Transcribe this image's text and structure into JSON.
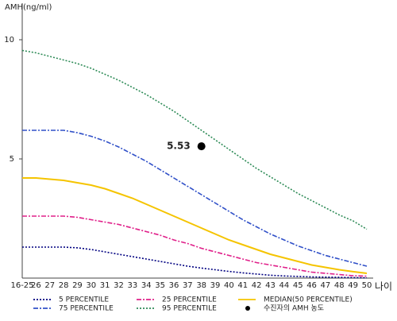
{
  "chart_data": {
    "type": "line",
    "y_label": "AMH(ng/ml)",
    "x_label": "나이",
    "categories": [
      "16-25",
      "26",
      "27",
      "28",
      "29",
      "30",
      "31",
      "32",
      "33",
      "34",
      "35",
      "36",
      "37",
      "38",
      "39",
      "40",
      "41",
      "42",
      "43",
      "44",
      "45",
      "46",
      "47",
      "48",
      "49",
      "50"
    ],
    "ylim": [
      0,
      11.5
    ],
    "yticks": [
      5,
      10
    ],
    "series": [
      {
        "name": "5 PERCENTILE",
        "color": "#000080",
        "dash": "dotted",
        "values": [
          1.3,
          1.3,
          1.3,
          1.3,
          1.27,
          1.2,
          1.1,
          1.0,
          0.9,
          0.8,
          0.7,
          0.6,
          0.5,
          0.42,
          0.35,
          0.28,
          0.22,
          0.17,
          0.12,
          0.09,
          0.07,
          0.05,
          0.04,
          0.03,
          0.02,
          0.01
        ]
      },
      {
        "name": "25 PERCENTILE",
        "color": "#e0208a",
        "dash": "dash-dot",
        "values": [
          2.6,
          2.6,
          2.6,
          2.6,
          2.55,
          2.45,
          2.35,
          2.25,
          2.1,
          1.95,
          1.8,
          1.6,
          1.45,
          1.25,
          1.1,
          0.95,
          0.8,
          0.65,
          0.55,
          0.45,
          0.35,
          0.25,
          0.2,
          0.15,
          0.1,
          0.08
        ]
      },
      {
        "name": "MEDIAN(50 PERCENTILE)",
        "color": "#f5c400",
        "dash": "solid",
        "values": [
          4.2,
          4.2,
          4.15,
          4.1,
          4.0,
          3.9,
          3.75,
          3.55,
          3.35,
          3.1,
          2.85,
          2.6,
          2.35,
          2.1,
          1.85,
          1.6,
          1.4,
          1.2,
          1.0,
          0.85,
          0.7,
          0.55,
          0.45,
          0.35,
          0.27,
          0.2
        ]
      },
      {
        "name": "75 PERCENTILE",
        "color": "#3050c8",
        "dash": "dash-dot",
        "values": [
          6.2,
          6.2,
          6.2,
          6.2,
          6.1,
          5.95,
          5.75,
          5.5,
          5.2,
          4.9,
          4.55,
          4.2,
          3.85,
          3.5,
          3.15,
          2.8,
          2.45,
          2.15,
          1.85,
          1.6,
          1.35,
          1.15,
          0.95,
          0.8,
          0.65,
          0.5
        ]
      },
      {
        "name": "95 PERCENTILE",
        "color": "#2e8b57",
        "dash": "dotted",
        "values": [
          9.55,
          9.45,
          9.3,
          9.15,
          9.0,
          8.8,
          8.55,
          8.3,
          8.0,
          7.7,
          7.35,
          7.0,
          6.6,
          6.2,
          5.8,
          5.4,
          5.0,
          4.6,
          4.25,
          3.9,
          3.55,
          3.25,
          2.95,
          2.65,
          2.4,
          2.05
        ]
      }
    ],
    "point": {
      "name": "수진자의 AMH 농도",
      "x": "38",
      "value": 5.53,
      "color": "#000000"
    }
  }
}
